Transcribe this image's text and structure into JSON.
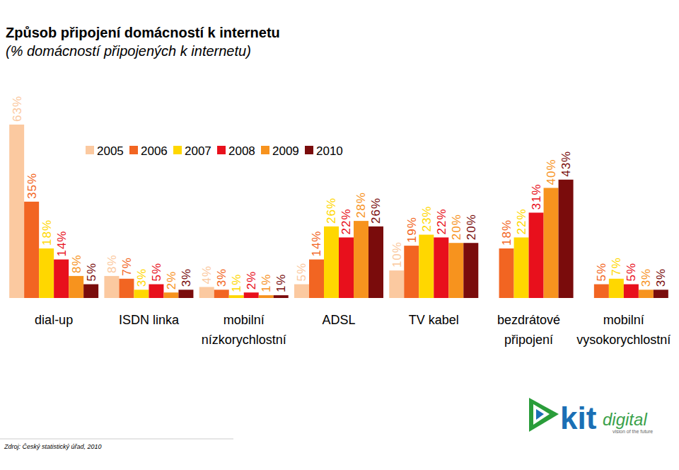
{
  "chart_data": {
    "type": "bar",
    "title": "Způsob připojení domácností k internetu",
    "subtitle": "(% domácností připojených k internetu)",
    "source": "Zdroj: Český statistický úřad, 2010",
    "categories": [
      "dial-up",
      "ISDN linka",
      "mobilní\nnízkorychlostní",
      "ADSL",
      "TV kabel",
      "bezdrátové\npřipojení",
      "mobilní\nvysokorychlostní"
    ],
    "series": [
      {
        "name": "2005",
        "color": "#fbc9a0",
        "values": [
          63,
          8,
          4,
          5,
          10,
          null,
          null
        ]
      },
      {
        "name": "2006",
        "color": "#f26522",
        "values": [
          35,
          7,
          3,
          14,
          19,
          18,
          5
        ]
      },
      {
        "name": "2007",
        "color": "#ffd700",
        "values": [
          18,
          3,
          1,
          26,
          23,
          22,
          7
        ]
      },
      {
        "name": "2008",
        "color": "#e8101c",
        "values": [
          14,
          5,
          2,
          22,
          22,
          31,
          5
        ]
      },
      {
        "name": "2009",
        "color": "#f7931e",
        "values": [
          8,
          2,
          1,
          28,
          20,
          40,
          3
        ]
      },
      {
        "name": "2010",
        "color": "#7a0c0c",
        "values": [
          5,
          3,
          1,
          26,
          20,
          43,
          3
        ]
      }
    ],
    "ylim": [
      0,
      63
    ],
    "value_labels": [
      [
        "63%",
        "8%",
        "4%",
        "5%",
        "10%",
        null,
        null
      ],
      [
        "35%",
        "7%",
        "3%",
        "14%",
        "19%",
        "18%",
        "5%"
      ],
      [
        "18%",
        "3%",
        "1%",
        "26%",
        "23%",
        "22%",
        "7%"
      ],
      [
        "14%",
        "5%",
        "2%",
        "22%",
        "22%",
        "31%",
        "5%"
      ],
      [
        "8%",
        "2%",
        "1%",
        "28%",
        "20%",
        "40%",
        "3%"
      ],
      [
        "5%",
        "3%",
        "1%",
        "26%",
        "20%",
        "43%",
        "3%"
      ]
    ],
    "data_labels": true,
    "legend": "top",
    "tick_labels": "x",
    "grid": false
  },
  "logo": {
    "text": "kit",
    "text2": "digital",
    "tagline": "vision of the future"
  }
}
